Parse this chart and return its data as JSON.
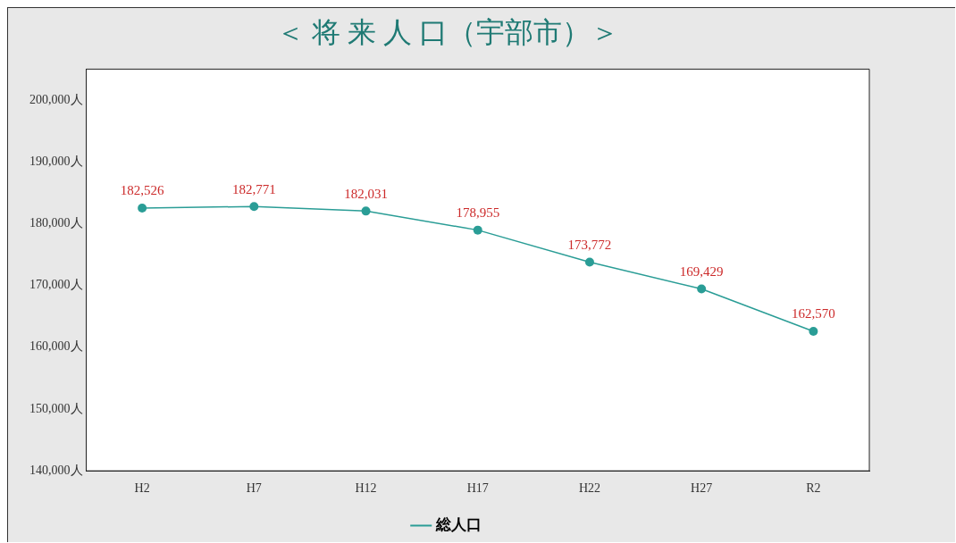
{
  "chart_data": {
    "type": "line",
    "title": "＜ 将 来 人 口（宇部市）＞",
    "categories": [
      "H2",
      "H7",
      "H12",
      "H17",
      "H22",
      "H27",
      "R2"
    ],
    "series": [
      {
        "name": "総人口",
        "color": "#2a9d96",
        "values": [
          182526,
          182771,
          182031,
          178955,
          173772,
          169429,
          162570
        ],
        "value_labels": [
          "182,526",
          "182,771",
          "182,031",
          "178,955",
          "173,772",
          "169,429",
          "162,570"
        ]
      }
    ],
    "ylim": [
      140000,
      205000
    ],
    "yticks": [
      {
        "value": 140000,
        "label": "140,000人"
      },
      {
        "value": 150000,
        "label": "150,000人"
      },
      {
        "value": 160000,
        "label": "160,000人"
      },
      {
        "value": 170000,
        "label": "170,000人"
      },
      {
        "value": 180000,
        "label": "180,000人"
      },
      {
        "value": 190000,
        "label": "190,000人"
      },
      {
        "value": 200000,
        "label": "200,000人"
      }
    ],
    "grid": false,
    "legend": "bottom",
    "marker": "circle",
    "line_style": "solid"
  }
}
